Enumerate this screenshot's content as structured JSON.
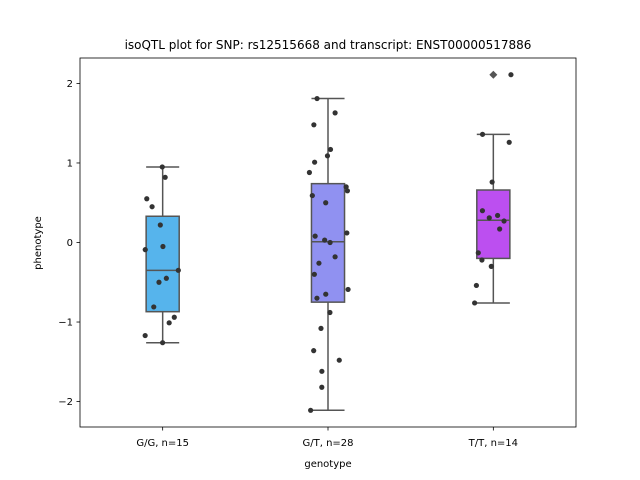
{
  "chart_data": {
    "type": "box",
    "title": "isoQTL plot for SNP: rs12515668 and transcript: ENST00000517886",
    "xlabel": "genotype",
    "ylabel": "phenotype",
    "ylim": [
      -2.32,
      2.32
    ],
    "yticks": [
      -2,
      -1,
      0,
      1,
      2
    ],
    "ytick_labels": [
      "−2",
      "−1",
      "0",
      "1",
      "2"
    ],
    "grid": false,
    "groups": [
      {
        "label": "G/G, n=15",
        "color": "#56b4ec",
        "box": {
          "q1": -0.87,
          "median": -0.35,
          "q3": 0.33,
          "whisker_low": -1.26,
          "whisker_high": 0.95
        },
        "outliers": [],
        "points": [
          0.95,
          0.82,
          0.55,
          0.45,
          0.22,
          -0.05,
          -0.09,
          -0.35,
          -0.45,
          -0.5,
          -0.81,
          -0.94,
          -1.01,
          -1.17,
          -1.26
        ]
      },
      {
        "label": "G/T, n=28",
        "color": "#9091f1",
        "box": {
          "q1": -0.75,
          "median": 0.01,
          "q3": 0.74,
          "whisker_low": -2.11,
          "whisker_high": 1.81
        },
        "outliers": [],
        "points": [
          1.81,
          1.63,
          1.48,
          1.17,
          1.09,
          1.01,
          0.88,
          0.7,
          0.65,
          0.59,
          0.5,
          0.12,
          0.08,
          0.03,
          0.0,
          -0.18,
          -0.26,
          -0.4,
          -0.59,
          -0.65,
          -0.7,
          -0.88,
          -1.08,
          -1.36,
          -1.48,
          -1.62,
          -1.82,
          -2.11
        ]
      },
      {
        "label": "T/T, n=14",
        "color": "#bc4ff0",
        "box": {
          "q1": -0.2,
          "median": 0.28,
          "q3": 0.66,
          "whisker_low": -0.76,
          "whisker_high": 1.36
        },
        "outliers": [
          2.11
        ],
        "points": [
          2.11,
          1.36,
          1.26,
          0.76,
          0.4,
          0.34,
          0.31,
          0.27,
          0.17,
          -0.13,
          -0.22,
          -0.3,
          -0.54,
          -0.76
        ]
      }
    ]
  }
}
